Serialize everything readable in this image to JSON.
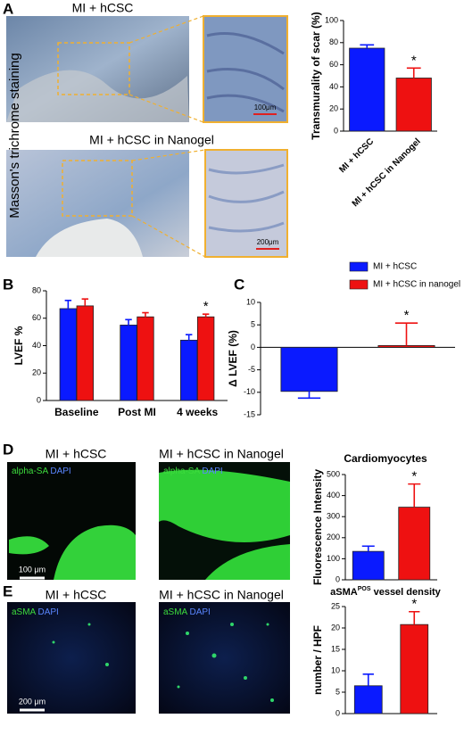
{
  "figure": {
    "panel_labels": [
      "A",
      "B",
      "C",
      "D",
      "E"
    ],
    "side_label": "Masson's trichrome staining",
    "image_titles": [
      "MI + hCSC",
      "MI + hCSC in Nanogel",
      "MI + hCSC",
      "MI + hCSC in Nanogel",
      "MI + hCSC",
      "MI + hCSC in Nanogel"
    ],
    "stain_labels": [
      {
        "marker": "alpha-SA",
        "nucleus": "DAPI"
      },
      {
        "marker": "alpha-SA",
        "nucleus": "DAPI"
      },
      {
        "marker": "aSMA",
        "nucleus": "DAPI"
      },
      {
        "marker": "aSMA",
        "nucleus": "DAPI"
      }
    ],
    "scale_bars": [
      "100μm",
      "200μm",
      "100 μm",
      "200 μm"
    ]
  },
  "chart_data": [
    {
      "type": "bar",
      "y_label": "Transmurality of scar (%)",
      "categories": [
        "MI + hCSC",
        "MI + hCSC in Nanogel"
      ],
      "values": [
        75,
        48
      ],
      "errors": [
        3,
        9
      ],
      "colors": [
        "#0a1aff",
        "#ee1111"
      ],
      "ylim": [
        0,
        100
      ],
      "yticks": [
        0,
        20,
        40,
        60,
        80,
        100
      ],
      "annotations": [
        {
          "text": "*",
          "index": 1
        }
      ]
    },
    {
      "type": "grouped-bar",
      "y_label": "LVEF %",
      "categories": [
        "Baseline",
        "Post MI",
        "4 weeks"
      ],
      "series": [
        {
          "name": "MI + hCSC",
          "color": "#0a1aff",
          "values": [
            67,
            55,
            44
          ],
          "errors": [
            6,
            4,
            4
          ]
        },
        {
          "name": "MI + hCSC in nanogel",
          "color": "#ee1111",
          "values": [
            69,
            61,
            61
          ],
          "errors": [
            5,
            3,
            2
          ]
        }
      ],
      "ylim": [
        0,
        80
      ],
      "yticks": [
        0,
        20,
        40,
        60,
        80
      ],
      "legend": "upper right",
      "annotations": [
        {
          "text": "*",
          "series": 1,
          "index": 2
        }
      ]
    },
    {
      "type": "bar",
      "y_label": "Δ LVEF (%)",
      "categories": [
        null,
        null
      ],
      "values": [
        -9.8,
        0.4
      ],
      "errors": [
        1.5,
        5
      ],
      "colors": [
        "#0a1aff",
        "#ee1111"
      ],
      "ylim": [
        -15,
        10
      ],
      "yticks": [
        -15,
        -10,
        -5,
        0,
        5,
        10
      ],
      "annotations": [
        {
          "text": "*",
          "index": 1
        }
      ]
    },
    {
      "type": "bar",
      "title": "Cardiomyocytes",
      "y_label": "Fluorescence Intensity",
      "categories": [
        null,
        null
      ],
      "values": [
        135,
        345
      ],
      "errors": [
        25,
        110
      ],
      "colors": [
        "#0a1aff",
        "#ee1111"
      ],
      "ylim": [
        0,
        500
      ],
      "yticks": [
        0,
        100,
        200,
        300,
        400,
        500
      ],
      "annotations": [
        {
          "text": "*",
          "index": 1
        }
      ]
    },
    {
      "type": "bar",
      "title_parts": [
        "aSMA",
        "POS",
        " vessel density"
      ],
      "y_label": "number / HPF",
      "categories": [
        null,
        null
      ],
      "values": [
        6.5,
        20.8
      ],
      "errors": [
        2.7,
        3
      ],
      "colors": [
        "#0a1aff",
        "#ee1111"
      ],
      "ylim": [
        0,
        25
      ],
      "yticks": [
        0,
        5,
        10,
        15,
        20,
        25
      ],
      "annotations": [
        {
          "text": "*",
          "index": 1
        }
      ]
    }
  ]
}
